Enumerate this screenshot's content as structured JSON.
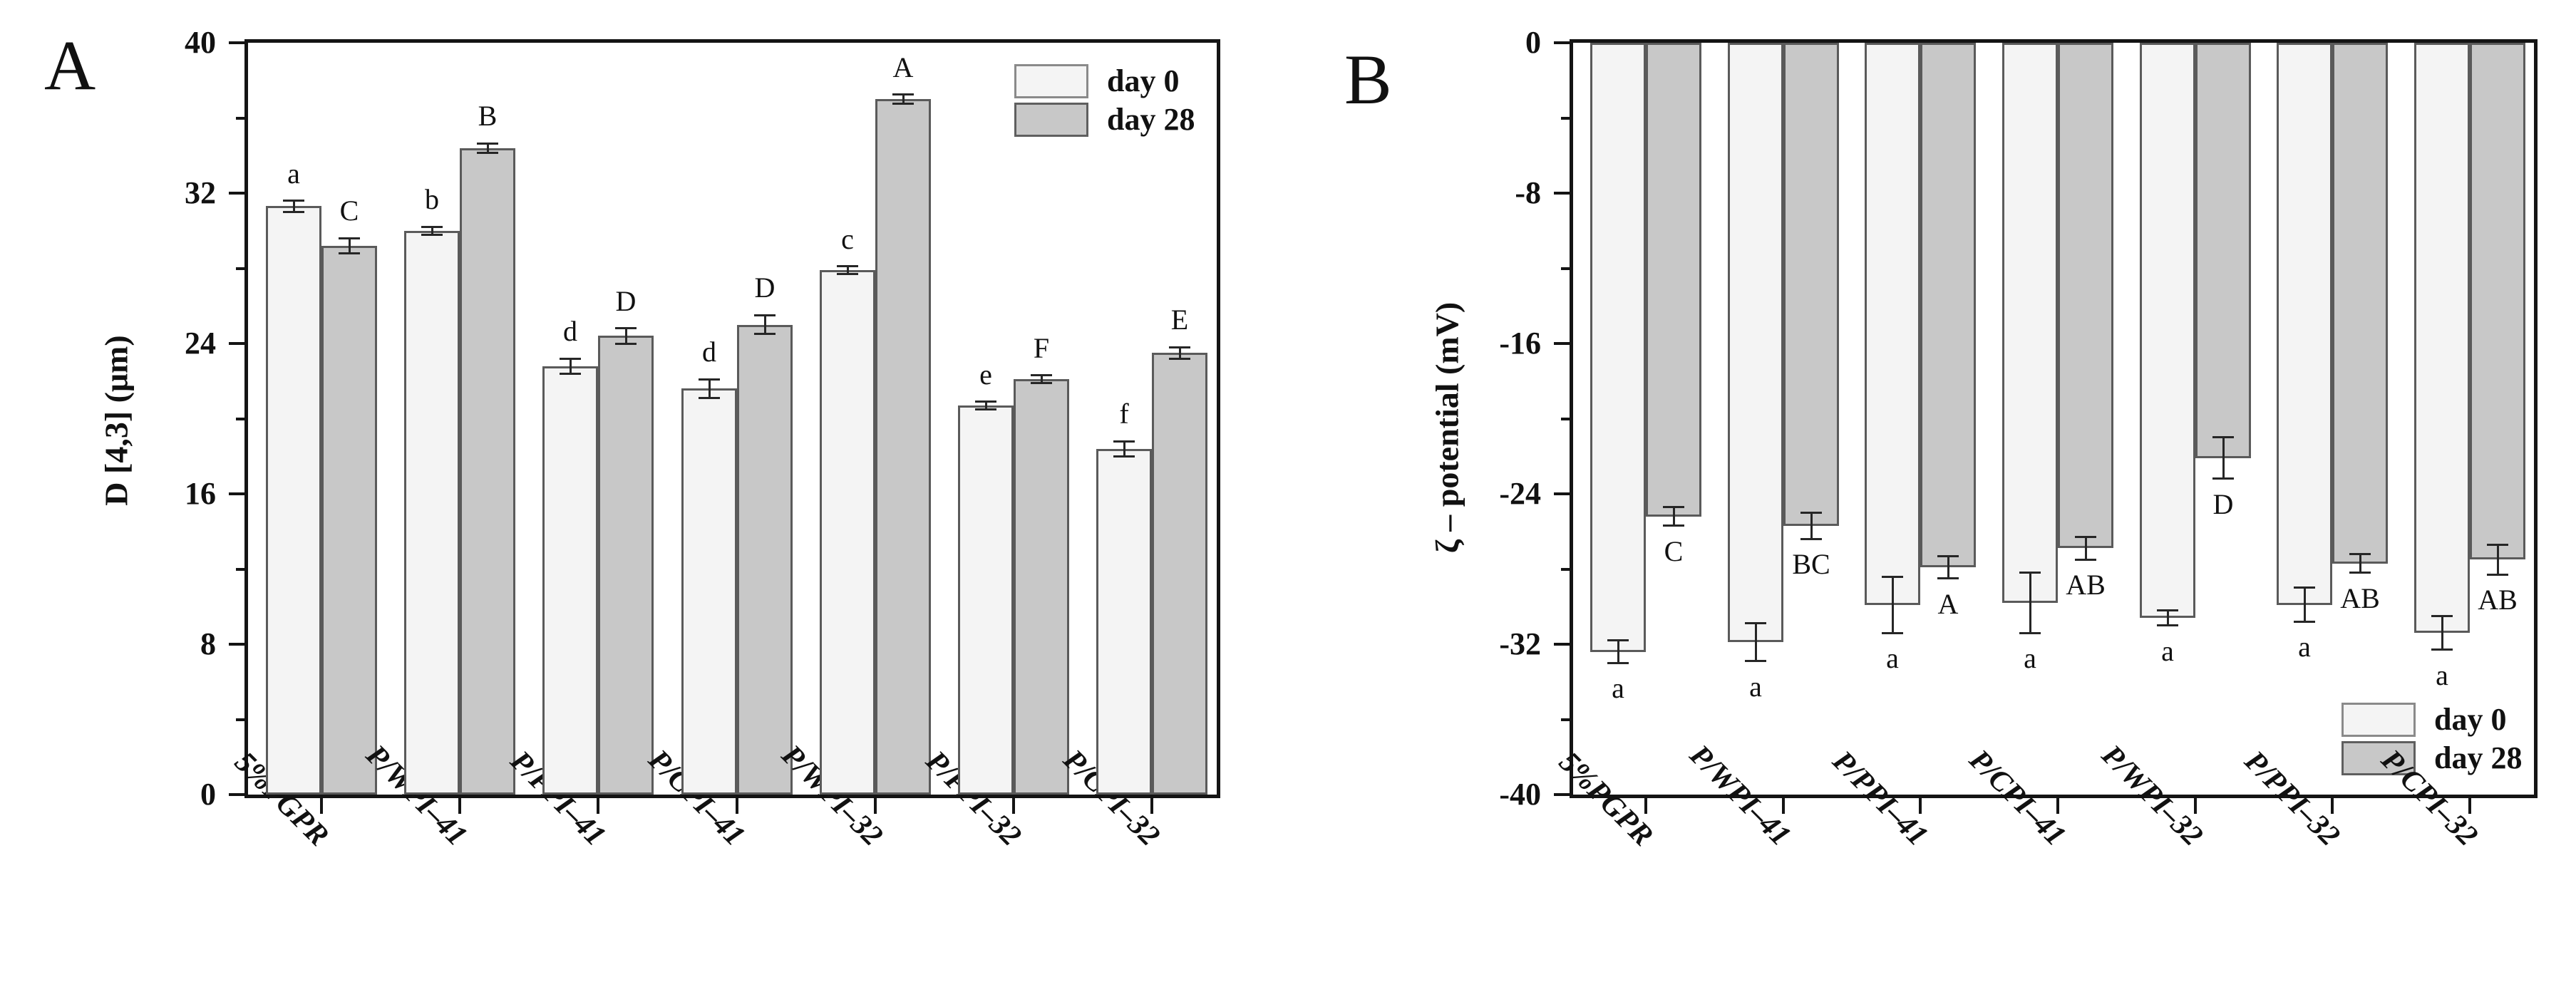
{
  "figure": {
    "panel_a_letter": "A",
    "panel_b_letter": "B",
    "legend": {
      "day0_label": "day 0",
      "day28_label": "day 28"
    }
  },
  "colors": {
    "day0_fill": "#f4f4f4",
    "day28_fill": "#c8c8c8",
    "bar_border": "#5a5a5a",
    "axis": "#141414"
  },
  "chart_data": [
    {
      "type": "bar",
      "panel": "A",
      "ylabel": "D [4,3] (μm)",
      "ylim": [
        0,
        40
      ],
      "ytick_step": 8,
      "minor_tick_step": 4,
      "grid": false,
      "legend_position": "top-right",
      "letter_position": "above",
      "categories": [
        "5%PGPR",
        "P/WPI–41",
        "P/PPI–41",
        "P/CPI–41",
        "P/WPI–32",
        "P/PPI–32",
        "P/CPI–32"
      ],
      "series": [
        {
          "name": "day 0",
          "values": [
            31.3,
            30.0,
            22.8,
            21.6,
            27.9,
            20.7,
            18.4
          ],
          "errors": [
            0.3,
            0.2,
            0.4,
            0.5,
            0.2,
            0.2,
            0.4
          ],
          "letters": [
            "a",
            "b",
            "d",
            "d",
            "c",
            "e",
            "f"
          ]
        },
        {
          "name": "day 28",
          "values": [
            29.2,
            34.4,
            24.4,
            25.0,
            37.0,
            22.1,
            23.5
          ],
          "errors": [
            0.4,
            0.25,
            0.4,
            0.5,
            0.25,
            0.2,
            0.3
          ],
          "letters": [
            "C",
            "B",
            "D",
            "D",
            "A",
            "F",
            "E"
          ]
        }
      ]
    },
    {
      "type": "bar",
      "panel": "B",
      "ylabel": "ζ – potential (mV)",
      "ylim": [
        -40,
        0
      ],
      "ytick_step": 8,
      "minor_tick_step": 4,
      "grid": false,
      "legend_position": "bottom-right",
      "letter_position": "below",
      "categories": [
        "5%PGPR",
        "P/WPI–41",
        "P/PPI–41",
        "P/CPI–41",
        "P/WPI–32",
        "P/PPI–32",
        "P/CPI–32"
      ],
      "series": [
        {
          "name": "day 0",
          "values": [
            -32.4,
            -31.9,
            -29.9,
            -29.8,
            -30.6,
            -29.9,
            -31.4
          ],
          "errors": [
            0.6,
            1.0,
            1.5,
            1.6,
            0.4,
            0.9,
            0.9
          ],
          "letters": [
            "a",
            "a",
            "a",
            "a",
            "a",
            "a",
            "a"
          ]
        },
        {
          "name": "day 28",
          "values": [
            -25.2,
            -25.7,
            -27.9,
            -26.9,
            -22.1,
            -27.7,
            -27.5
          ],
          "errors": [
            0.5,
            0.7,
            0.6,
            0.6,
            1.1,
            0.5,
            0.8
          ],
          "letters": [
            "C",
            "BC",
            "A",
            "AB",
            "D",
            "AB",
            "AB"
          ]
        }
      ]
    }
  ]
}
